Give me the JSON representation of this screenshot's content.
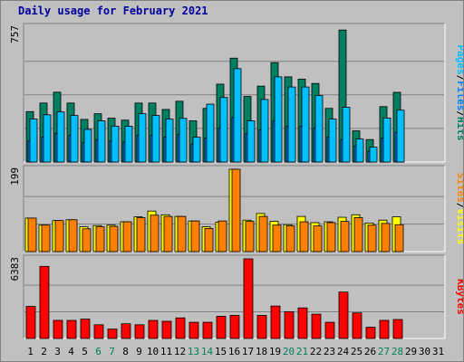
{
  "title": "Daily usage for February 2021",
  "colors": {
    "hits": "#008060",
    "files": "#0080ff",
    "pages": "#00c0ff",
    "visits": "#ffff00",
    "sites": "#ff8000",
    "kbytes": "#ff0000",
    "weekend_label": "#00805c",
    "weekday_label": "#000000"
  },
  "chart_data": [
    {
      "type": "bar",
      "panel": "hits-files-pages",
      "ymax_label": "757",
      "ylim": [
        0,
        757
      ],
      "right_labels": [
        "Pages",
        "Files",
        "Hits"
      ],
      "categories": [
        "1",
        "2",
        "3",
        "4",
        "5",
        "6",
        "7",
        "8",
        "9",
        "10",
        "11",
        "12",
        "13",
        "14",
        "15",
        "16",
        "17",
        "18",
        "19",
        "20",
        "21",
        "22",
        "23",
        "24",
        "25",
        "26",
        "27",
        "28",
        "29",
        "30",
        "31"
      ],
      "series": [
        {
          "name": "Hits",
          "values": [
            283,
            331,
            392,
            331,
            239,
            271,
            246,
            235,
            331,
            331,
            295,
            341,
            231,
            301,
            437,
            583,
            368,
            426,
            558,
            478,
            465,
            441,
            301,
            741,
            175,
            126,
            311,
            391,
            null,
            null,
            null
          ]
        },
        {
          "name": "Files",
          "values": [
            120,
            140,
            160,
            150,
            110,
            125,
            118,
            113,
            150,
            150,
            140,
            155,
            100,
            135,
            190,
            250,
            160,
            180,
            230,
            200,
            200,
            190,
            140,
            125,
            90,
            60,
            135,
            165,
            null,
            null,
            null
          ]
        },
        {
          "name": "Pages",
          "values": [
            241,
            265,
            281,
            261,
            183,
            231,
            201,
            201,
            271,
            261,
            241,
            245,
            139,
            325,
            362,
            524,
            231,
            351,
            478,
            421,
            421,
            373,
            241,
            307,
            129,
            84,
            247,
            291,
            null,
            null,
            null
          ]
        }
      ]
    },
    {
      "type": "bar",
      "panel": "visits-sites",
      "ymax_label": "199",
      "ylim": [
        0,
        199
      ],
      "right_labels": [
        "Sites",
        "Visits"
      ],
      "categories": [
        "1",
        "2",
        "3",
        "4",
        "5",
        "6",
        "7",
        "8",
        "9",
        "10",
        "11",
        "12",
        "13",
        "14",
        "15",
        "16",
        "17",
        "18",
        "19",
        "20",
        "21",
        "22",
        "23",
        "24",
        "25",
        "26",
        "27",
        "28",
        "29",
        "30",
        "31"
      ],
      "series": [
        {
          "name": "Visits",
          "values": [
            81,
            64,
            75,
            77,
            60,
            63,
            64,
            72,
            84,
            98,
            89,
            85,
            74,
            60,
            71,
            199,
            76,
            92,
            73,
            65,
            85,
            70,
            72,
            83,
            89,
            69,
            76,
            84,
            null,
            null,
            null
          ]
        },
        {
          "name": "Sites",
          "values": [
            81,
            64,
            75,
            77,
            55,
            60,
            61,
            72,
            82,
            88,
            85,
            85,
            74,
            56,
            74,
            199,
            73,
            85,
            64,
            62,
            72,
            62,
            70,
            73,
            82,
            64,
            68,
            65,
            null,
            null,
            null
          ]
        }
      ]
    },
    {
      "type": "bar",
      "panel": "kbytes",
      "ymax_label": "6383",
      "ylim": [
        0,
        6383
      ],
      "right_labels": [
        "KBytes"
      ],
      "categories": [
        "1",
        "2",
        "3",
        "4",
        "5",
        "6",
        "7",
        "8",
        "9",
        "10",
        "11",
        "12",
        "13",
        "14",
        "15",
        "16",
        "17",
        "18",
        "19",
        "20",
        "21",
        "22",
        "23",
        "24",
        "25",
        "26",
        "27",
        "28",
        "29",
        "30",
        "31"
      ],
      "series": [
        {
          "name": "KBytes",
          "values": [
            2570,
            5780,
            1450,
            1450,
            1550,
            1100,
            750,
            1180,
            1100,
            1450,
            1380,
            1650,
            1300,
            1300,
            1780,
            1850,
            6383,
            1850,
            2600,
            2150,
            2450,
            1950,
            1300,
            3720,
            2050,
            900,
            1450,
            1520,
            null,
            null,
            null
          ]
        }
      ]
    }
  ],
  "weekend_days": [
    "6",
    "7",
    "13",
    "14",
    "20",
    "21",
    "27",
    "28"
  ]
}
